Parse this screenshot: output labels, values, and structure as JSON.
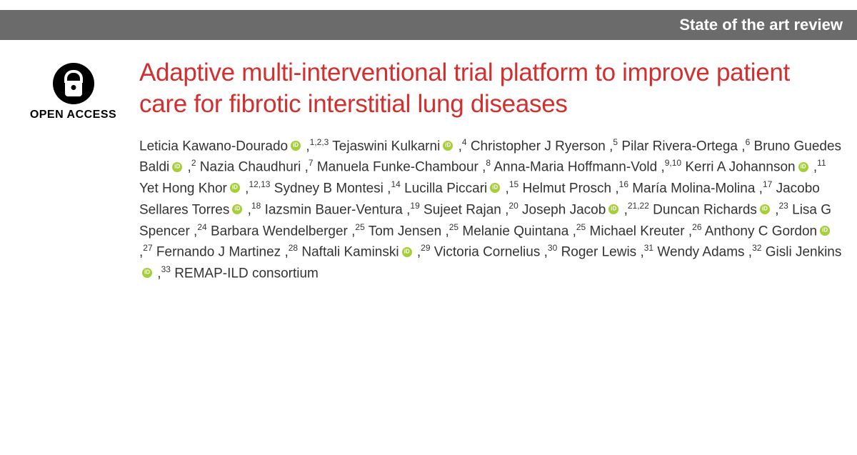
{
  "header": {
    "banner": "State of the art review"
  },
  "sidebar": {
    "oa_label": "OPEN ACCESS"
  },
  "article": {
    "title": "Adaptive multi-interventional trial platform to improve patient care for fibrotic interstitial lung diseases",
    "title_color": "#d32f2f",
    "authors": [
      {
        "name": "Leticia Kawano-Dourado",
        "orcid": true,
        "affil": "1,2,3"
      },
      {
        "name": "Tejaswini Kulkarni",
        "orcid": true,
        "affil": "4"
      },
      {
        "name": "Christopher J Ryerson",
        "orcid": false,
        "affil": "5"
      },
      {
        "name": "Pilar Rivera-Ortega",
        "orcid": false,
        "affil": "6"
      },
      {
        "name": "Bruno Guedes Baldi",
        "orcid": true,
        "affil": "2"
      },
      {
        "name": "Nazia Chaudhuri",
        "orcid": false,
        "affil": "7"
      },
      {
        "name": "Manuela Funke-Chambour",
        "orcid": false,
        "affil": "8"
      },
      {
        "name": "Anna-Maria Hoffmann-Vold",
        "orcid": false,
        "affil": "9,10"
      },
      {
        "name": "Kerri A Johannson",
        "orcid": true,
        "affil": "11"
      },
      {
        "name": "Yet Hong Khor",
        "orcid": true,
        "affil": "12,13"
      },
      {
        "name": "Sydney B Montesi",
        "orcid": false,
        "affil": "14"
      },
      {
        "name": "Lucilla Piccari",
        "orcid": true,
        "affil": "15"
      },
      {
        "name": "Helmut Prosch",
        "orcid": false,
        "affil": "16"
      },
      {
        "name": "María Molina-Molina",
        "orcid": false,
        "affil": "17"
      },
      {
        "name": "Jacobo Sellares Torres",
        "orcid": true,
        "affil": "18"
      },
      {
        "name": "Iazsmin Bauer-Ventura",
        "orcid": false,
        "affil": "19"
      },
      {
        "name": "Sujeet Rajan",
        "orcid": false,
        "affil": "20"
      },
      {
        "name": "Joseph Jacob",
        "orcid": true,
        "affil": "21,22"
      },
      {
        "name": "Duncan Richards",
        "orcid": true,
        "affil": "23"
      },
      {
        "name": "Lisa G Spencer",
        "orcid": false,
        "affil": "24"
      },
      {
        "name": "Barbara Wendelberger",
        "orcid": false,
        "affil": "25"
      },
      {
        "name": "Tom Jensen",
        "orcid": false,
        "affil": "25"
      },
      {
        "name": "Melanie Quintana",
        "orcid": false,
        "affil": "25"
      },
      {
        "name": "Michael Kreuter",
        "orcid": false,
        "affil": "26"
      },
      {
        "name": "Anthony C Gordon",
        "orcid": true,
        "affil": "27"
      },
      {
        "name": "Fernando J Martinez",
        "orcid": false,
        "affil": "28"
      },
      {
        "name": "Naftali Kaminski",
        "orcid": true,
        "affil": "29"
      },
      {
        "name": "Victoria Cornelius",
        "orcid": false,
        "affil": "30"
      },
      {
        "name": "Roger Lewis",
        "orcid": false,
        "affil": "31"
      },
      {
        "name": "Wendy Adams",
        "orcid": false,
        "affil": "32"
      },
      {
        "name": "Gisli Jenkins",
        "orcid": true,
        "affil": "33"
      },
      {
        "name": "REMAP-ILD consortium",
        "orcid": false,
        "affil": ""
      }
    ],
    "colors": {
      "banner_bg": "#6b6b6b",
      "orcid_bg": "#a6ce39",
      "text": "#333333"
    },
    "typography": {
      "title_fontsize": 35,
      "author_fontsize": 19,
      "banner_fontsize": 22
    }
  }
}
